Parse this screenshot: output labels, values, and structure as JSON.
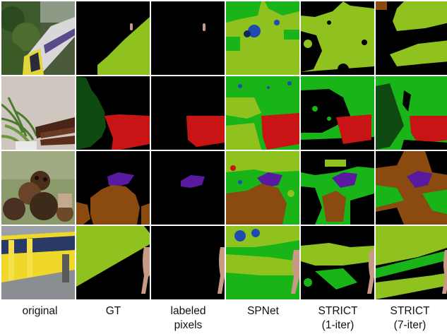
{
  "columns": [
    {
      "id": "original",
      "label": "original"
    },
    {
      "id": "gt",
      "label": "GT"
    },
    {
      "id": "labeled",
      "label": "labeled\npixels"
    },
    {
      "id": "spnet",
      "label": "SPNet"
    },
    {
      "id": "strict1",
      "label": "STRICT\n(1-iter)"
    },
    {
      "id": "strict7",
      "label": "STRICT\n(7-iter)"
    }
  ],
  "rows": [
    {
      "id": "train-scene",
      "subject": "train on tracks"
    },
    {
      "id": "chair-scene",
      "subject": "potted plant and chair"
    },
    {
      "id": "dog-scene",
      "subject": "dogs"
    },
    {
      "id": "tram-scene",
      "subject": "tram at platform"
    }
  ],
  "legend_colors": {
    "background": "#000000",
    "train": "#8fc21f",
    "person": "#c89a86",
    "potted_plant": "#0f4a12",
    "chair": "#c81414",
    "dog": "#8b4a10",
    "cat": "#5a1aa0",
    "bus_like": "#18b418",
    "boat_like": "#1f4bb0"
  }
}
